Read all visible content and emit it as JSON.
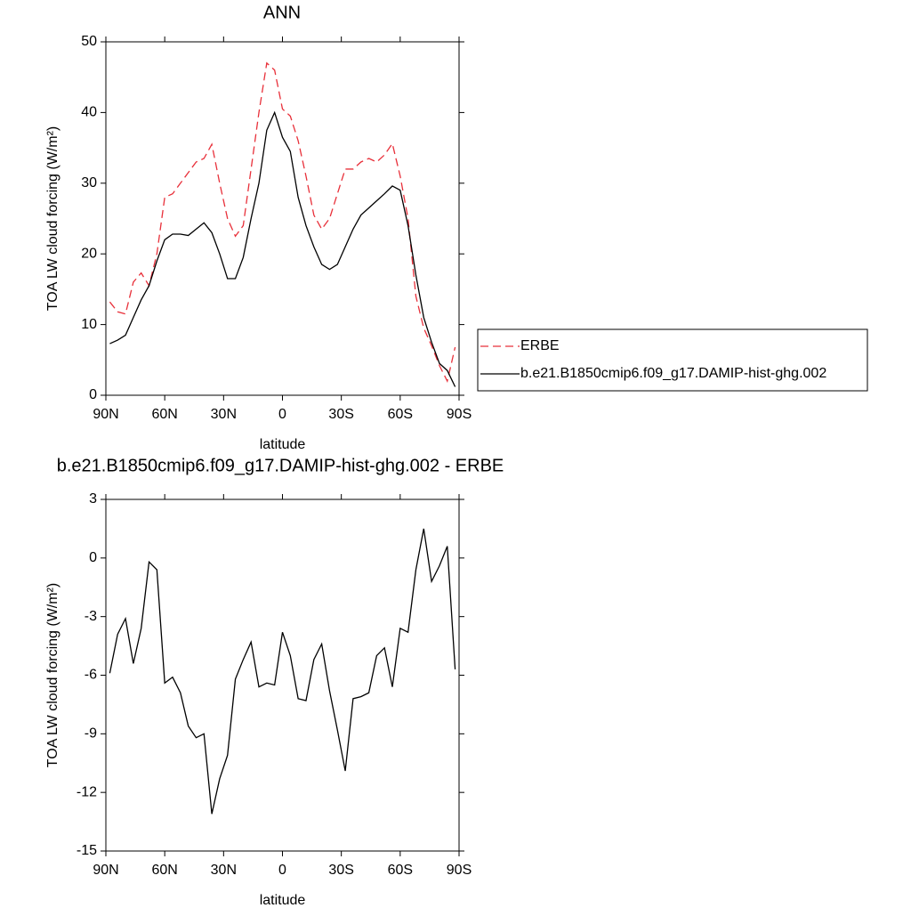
{
  "chart_data": [
    {
      "type": "line",
      "title": "ANN",
      "xlabel": "latitude",
      "ylabel": "TOA LW cloud forcing (W/m²)",
      "x": [
        88,
        84,
        80,
        76,
        72,
        68,
        64,
        60,
        56,
        52,
        48,
        44,
        40,
        36,
        32,
        28,
        24,
        20,
        16,
        12,
        8,
        4,
        0,
        -4,
        -8,
        -12,
        -16,
        -20,
        -24,
        -28,
        -32,
        -36,
        -40,
        -44,
        -48,
        -52,
        -56,
        -60,
        -64,
        -68,
        -72,
        -76,
        -80,
        -84,
        -88
      ],
      "xlim": [
        90,
        -90
      ],
      "xticks": [
        {
          "value": 90,
          "label": "90N"
        },
        {
          "value": 60,
          "label": "60N"
        },
        {
          "value": 30,
          "label": "30N"
        },
        0,
        {
          "value": -30,
          "label": "30S"
        },
        {
          "value": -60,
          "label": "60S"
        },
        {
          "value": -90,
          "label": "90S"
        }
      ],
      "ylim": [
        0,
        50
      ],
      "yticks": [
        0,
        10,
        20,
        30,
        40,
        50
      ],
      "legend": "right",
      "series": [
        {
          "name": "ERBE",
          "color": "#e8303a",
          "linestyle": "dashed",
          "values": [
            13.2,
            11.8,
            11.5,
            16,
            17.3,
            15.5,
            20,
            28,
            28.5,
            30,
            31.5,
            33,
            33.5,
            35.5,
            30,
            25,
            22.5,
            24,
            32,
            40,
            47,
            46,
            40.5,
            39.5,
            36,
            31,
            25.5,
            23.5,
            25,
            28.5,
            32,
            32,
            33,
            33.5,
            33,
            34,
            35.6,
            31,
            25,
            14,
            9.5,
            7,
            4.2,
            2,
            6.8
          ]
        },
        {
          "name": "b.e21.B1850cmip6.f09_g17.DAMIP-hist-ghg.002",
          "color": "#000000",
          "linestyle": "solid",
          "values": [
            7.3,
            7.8,
            8.5,
            11,
            13.5,
            15.5,
            19,
            22,
            22.8,
            22.8,
            22.6,
            23.5,
            24.4,
            23,
            20,
            16.5,
            16.5,
            19.5,
            25,
            30,
            37.5,
            40,
            36.5,
            34.5,
            28,
            24,
            21,
            18.5,
            17.8,
            18.5,
            21,
            23.5,
            25.5,
            26.5,
            27.5,
            28.5,
            29.6,
            29,
            24,
            17,
            11,
            7.5,
            4.5,
            3.5,
            1.2
          ]
        }
      ]
    },
    {
      "type": "line",
      "title": "b.e21.B1850cmip6.f09_g17.DAMIP-hist-ghg.002 - ERBE",
      "xlabel": "latitude",
      "ylabel": "TOA LW cloud forcing (W/m²)",
      "x": [
        88,
        84,
        80,
        76,
        72,
        68,
        64,
        60,
        56,
        52,
        48,
        44,
        40,
        36,
        32,
        28,
        24,
        20,
        16,
        12,
        8,
        4,
        0,
        -4,
        -8,
        -12,
        -16,
        -20,
        -24,
        -28,
        -32,
        -36,
        -40,
        -44,
        -48,
        -52,
        -56,
        -60,
        -64,
        -68,
        -72,
        -76,
        -80,
        -84,
        -88
      ],
      "xlim": [
        90,
        -90
      ],
      "xticks": [
        {
          "value": 90,
          "label": "90N"
        },
        {
          "value": 60,
          "label": "60N"
        },
        {
          "value": 30,
          "label": "30N"
        },
        0,
        {
          "value": -30,
          "label": "30S"
        },
        {
          "value": -60,
          "label": "60S"
        },
        {
          "value": -90,
          "label": "90S"
        }
      ],
      "ylim": [
        -15,
        3
      ],
      "yticks": [
        -15,
        -12,
        -9,
        -6,
        -3,
        0,
        3
      ],
      "color": "#000000",
      "values": [
        -5.9,
        -3.9,
        -3.1,
        -5.4,
        -3.6,
        -0.2,
        -0.6,
        -6.4,
        -6.1,
        -6.9,
        -8.6,
        -9.2,
        -9.0,
        -13.1,
        -11.3,
        -10.1,
        -6.2,
        -5.2,
        -4.3,
        -6.6,
        -6.4,
        -6.5,
        -3.8,
        -5,
        -7.2,
        -7.3,
        -5.2,
        -4.4,
        -6.8,
        -8.8,
        -10.9,
        -7.2,
        -7.1,
        -6.9,
        -5,
        -4.6,
        -6.6,
        -3.6,
        -3.8,
        -0.6,
        1.5,
        -1.2,
        -0.4,
        0.6,
        -5.7
      ]
    }
  ]
}
